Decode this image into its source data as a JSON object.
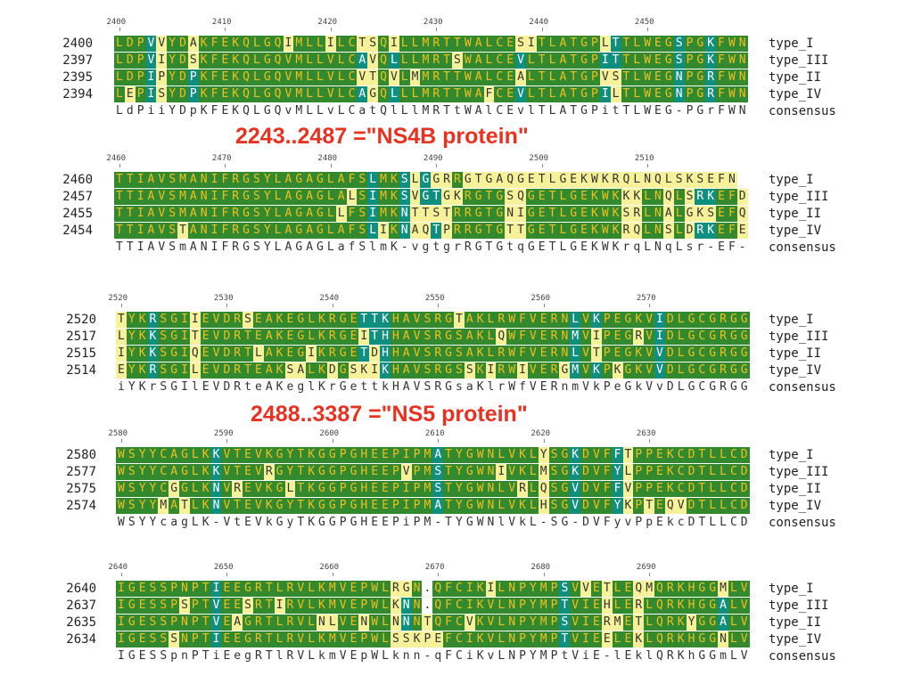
{
  "colors": {
    "identical": "#338a2e",
    "similar": "#0f8f80",
    "weak": "#f7f29a",
    "none": "#ffffff"
  },
  "annotations": {
    "ns4b": "2243..2487  =\"NS4B protein\"",
    "ns5": "2488..3387  =\"NS5 protein\""
  },
  "blocks": [
    {
      "ruler": [
        "2400",
        "2410",
        "2420",
        "2430",
        "2440",
        "2450"
      ],
      "rows": [
        {
          "num": "2400",
          "seq": "LDPVVYDAKFEKQLGQIMLLILCTSQILLMRTTWALCESITLATGPLTTLWEGSPGKFWN",
          "label": "type_I"
        },
        {
          "num": "2397",
          "seq": "LDPVIYDSKFEKQLGQVMLLVLCAVQLLLMRTSWALCEVLTLATGPITTLWEGSPGKFWN",
          "label": "type_III"
        },
        {
          "num": "2395",
          "seq": "LDPIPYDPKFEKQLGQVMLLVLCVTQVLMMRTTWALCEALTLATGPVSTLWEGNPGRFWN",
          "label": "type_II"
        },
        {
          "num": "2394",
          "seq": "LEPISYDPKFEKQLGQVMLLVLCAGQLLLMRTTWAFCEVLTLATGPILTLWEGNPGRFWN",
          "label": "type_IV"
        }
      ],
      "consensus": "LdPiiYDpKFEKQLGQvMLLvLCatQlLlMRTtWAlCEvlTLATGPitTLWEG-PGrFWN",
      "consensus_label": "consensus"
    },
    {
      "ruler": [
        "2460",
        "2470",
        "2480",
        "2490",
        "2500",
        "2510"
      ],
      "rows": [
        {
          "num": "2460",
          "seq": "TTIAVSMANIFRGSYLAGAGLAFSLMKSLGGRRGTGAQGETLGEKWKRQLNQLSKSEFN",
          "label": "type_I"
        },
        {
          "num": "2457",
          "seq": "TTIAVSMANIFRGSYLAGAGLALSIMKSVGTGKRGTGSQGETLGEKWKKKLNQLSRKEFD",
          "label": "type_III"
        },
        {
          "num": "2455",
          "seq": "TTIAVSMANIFRGSYLAGAGLLFSIMKNTTSTRRGTGNIGETLGEKWKSRLNALGKSEFQ",
          "label": "type_II"
        },
        {
          "num": "2454",
          "seq": "TTIAVSTANIFRGSYLAGAGLAFSLIKNAQTPRRGTGTTGETLGEKWKRQLNSLDRKEFE",
          "label": "type_IV"
        }
      ],
      "consensus": "TTIAVSmANIFRGSYLAGAGLafSlmK-vgtgrRGTGtqGETLGEKWKrqLNqLsr-EF-",
      "consensus_label": "consensus"
    },
    {
      "ruler": [
        "2520",
        "2530",
        "2540",
        "2550",
        "2560",
        "2570"
      ],
      "rows": [
        {
          "num": "2520",
          "seq": "TYKRSGIIEVDRSEAKEGLKRGETTKHAVSRGTAKLRWFVERNLVKPEGKVIDLGCGRGG",
          "label": "type_I"
        },
        {
          "num": "2517",
          "seq": "LYKKSGITEVDRTEAKEGLKRGEITHHAVSRGSAKLQWFVERNMVIPEGRVIDLGCGRGG",
          "label": "type_III"
        },
        {
          "num": "2515",
          "seq": "IYKKSGIQEVDRTLAKEGIKRGETDHHAVSRGSAKLRWFVERNLVTPEGKVVDLGCGRGG",
          "label": "type_II"
        },
        {
          "num": "2514",
          "seq": "EYKRSGILEVDRTEAKSALKDGSKIKHAVSRGSSKIRWIVERGMVKPKGKVVDLGCGRGG",
          "label": "type_IV"
        }
      ],
      "consensus": "iYKrSGIlEVDRteAKeglKrGettkHAVSRGsaKlrWfVERnmVkPeGkVvDLGCGRGG",
      "consensus_label": "consensus"
    },
    {
      "ruler": [
        "2580",
        "2590",
        "2600",
        "2610",
        "2620",
        "2630"
      ],
      "rows": [
        {
          "num": "2580",
          "seq": "WSYYCAGLKKVTEVKGYTKGGPGHEEPIPMATYGWNLVKLYSGKDVFFTPPEKCDTLLCD",
          "label": "type_I"
        },
        {
          "num": "2577",
          "seq": "WSYYCAGLKKVTEVRGYTKGGPGHEEPVPMSTYGWNIVKLMSGKDVFYLPPEKCDTLLCD",
          "label": "type_III"
        },
        {
          "num": "2575",
          "seq": "WSYYCGGLKNVREVKGLTKGGPGHEEPIPMSTYGWNLVRLQSGVDVFFVPPEKCDTLLCD",
          "label": "type_II"
        },
        {
          "num": "2574",
          "seq": "WSYYMATLKNVTEVKGYTKGGPGHEEPIPMATYGWNLVKLHSGVDVFYKPTEQVDTLLCD",
          "label": "type_IV"
        }
      ],
      "consensus": "WSYYcagLK-VtEVkGyTKGGPGHEEPiPM-TYGWNlVkL-SG-DVFyvPpEkcDTLLCD",
      "consensus_label": "consensus"
    },
    {
      "ruler": [
        "2640",
        "2650",
        "2660",
        "2670",
        "2680",
        "2690"
      ],
      "rows": [
        {
          "num": "2640",
          "seq": "IGESSPNPTIEEGRTLRVLKMVEPWLRGN.QFCIKILNPYMPSVVETLEQMQRKHGGMLV",
          "label": "type_I"
        },
        {
          "num": "2637",
          "seq": "IGESSPSPTVEESRTIRVLKMVEPWLKNN.QFCIKVLNPYMPTVIEHLERLQRKHGGALV",
          "label": "type_III"
        },
        {
          "num": "2635",
          "seq": "IGESSPNPTVEAGRTLRVLNLVENWLNNNTQFCVKVLNPYMPSVIERMETLQRKYGGALV",
          "label": "type_II"
        },
        {
          "num": "2634",
          "seq": "IGESSSNPTIEEGRTLRVLKMVEPWLSSKPEFCIKVLNPYMPTVIEELEKLQRKHGGNLV",
          "label": "type_IV"
        }
      ],
      "consensus": "IGESSpnPTiEegRTlRVLkmVEpWLknn-qFCiKvLNPYMPtViE-lEklQRKhGGmLV",
      "consensus_label": "consensus"
    }
  ]
}
